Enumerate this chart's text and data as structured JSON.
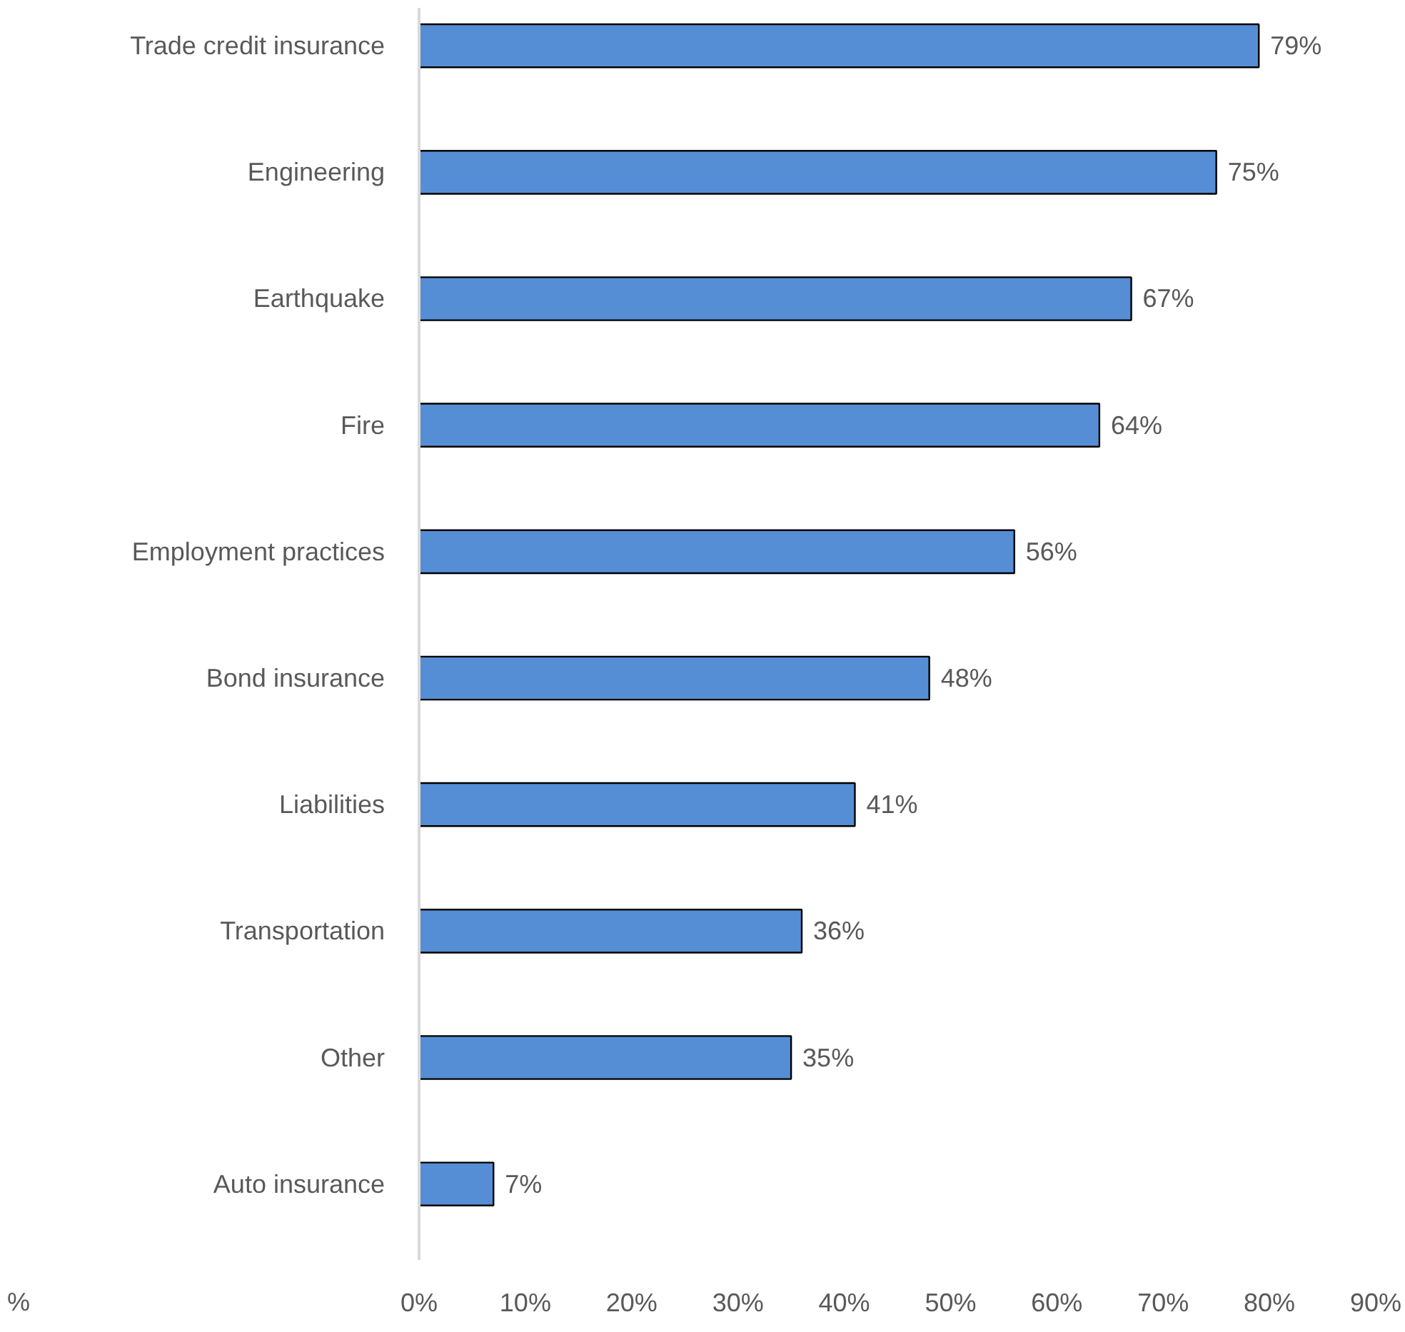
{
  "chart_data": {
    "type": "bar",
    "orientation": "horizontal",
    "categories": [
      "Trade credit insurance",
      "Engineering",
      "Earthquake",
      "Fire",
      "Employment practices",
      "Bond insurance",
      "Liabilities",
      "Transportation",
      "Other",
      "Auto insurance"
    ],
    "values": [
      79,
      75,
      67,
      64,
      56,
      48,
      41,
      36,
      35,
      7
    ],
    "value_labels": [
      "79%",
      "75%",
      "67%",
      "64%",
      "56%",
      "48%",
      "41%",
      "36%",
      "35%",
      "7%"
    ],
    "color": "#558ed5",
    "xlim": [
      0,
      90
    ],
    "xticks": [
      {
        "value": 0,
        "label": "0%"
      },
      {
        "value": 10,
        "label": "10%"
      },
      {
        "value": 20,
        "label": "20%"
      },
      {
        "value": 30,
        "label": "30%"
      },
      {
        "value": 40,
        "label": "40%"
      },
      {
        "value": 50,
        "label": "50%"
      },
      {
        "value": 60,
        "label": "60%"
      },
      {
        "value": 70,
        "label": "70%"
      },
      {
        "value": 80,
        "label": "80%"
      },
      {
        "value": 90,
        "label": "90%"
      }
    ],
    "grid": false,
    "annotations": [
      "%"
    ]
  }
}
